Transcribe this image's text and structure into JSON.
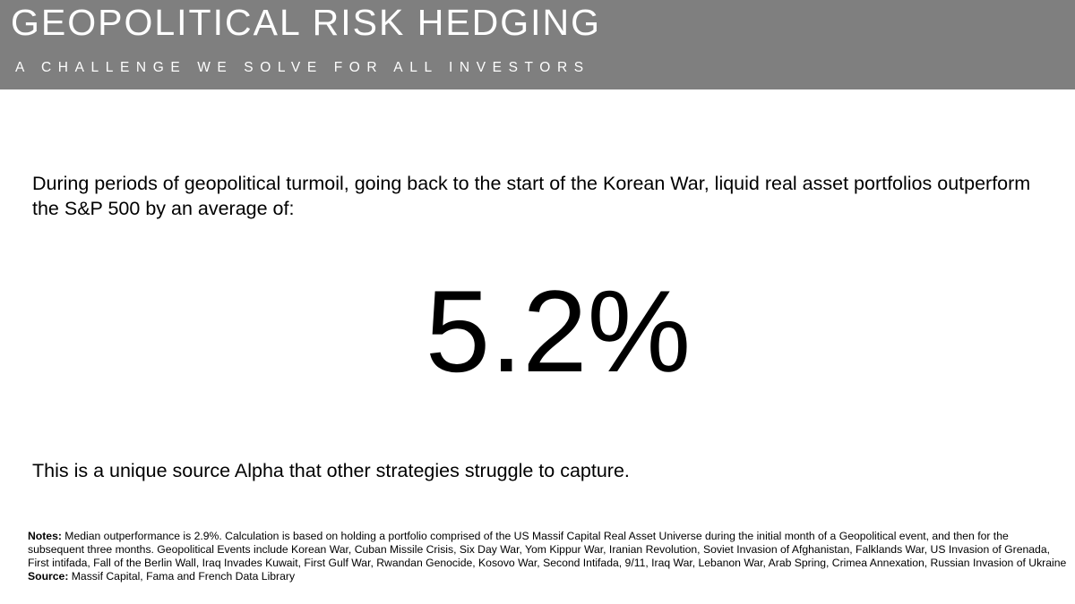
{
  "header": {
    "title": "GEOPOLITICAL RISK HEDGING",
    "subtitle": "A CHALLENGE WE SOLVE FOR ALL INVESTORS",
    "background_color": "#7f7f7f"
  },
  "main": {
    "intro": "During periods of geopolitical turmoil, going back to the start of the Korean War, liquid real asset portfolios outperform the S&P 500 by an average of:",
    "headline_value": "5.2%",
    "alpha_statement": "This is a unique source Alpha that other strategies struggle to capture."
  },
  "footer": {
    "notes_label": "Notes:",
    "notes_text": " Median outperformance is 2.9%. Calculation is based on holding a portfolio comprised of the US Massif Capital Real Asset Universe during the initial month of a Geopolitical event, and then for the subsequent three months. Geopolitical Events include Korean War, Cuban Missile Crisis, Six Day War, Yom Kippur War, Iranian Revolution, Soviet Invasion of Afghanistan, Falklands War, US Invasion of Grenada, First intifada, Fall of the Berlin Wall, Iraq Invades Kuwait, First Gulf War, Rwandan Genocide, Kosovo War, Second Intifada, 9/11, Iraq War, Lebanon War, Arab Spring, Crimea Annexation, Russian Invasion of Ukraine",
    "source_label": "Source:",
    "source_text": " Massif Capital, Fama and French Data Library"
  }
}
